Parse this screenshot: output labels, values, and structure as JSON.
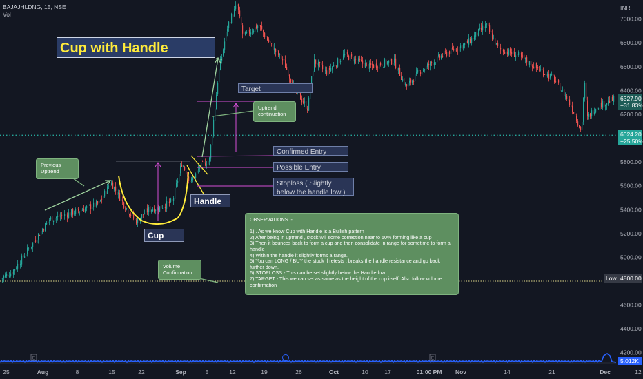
{
  "header": {
    "symbol": "BAJAJHLDNG, 15, NSE",
    "vol": "Vol"
  },
  "currency": "INR",
  "title": "Cup with Handle",
  "labels": {
    "target": "Target",
    "confirmed_entry": "Confirmed Entry",
    "possible_entry": "Possible Entry",
    "stoploss": "Stoploss ( Slightly below the handle low )",
    "handle": "Handle",
    "cup": "Cup",
    "previous_uptrend": "Previous Uptrend",
    "uptrend_continuation": "Uptrend continuation",
    "volume_confirmation": "Volume Confirmation",
    "low": "Low"
  },
  "observations": {
    "heading": "OBSERVATIONS :-",
    "items": [
      "1) . As we know Cup with Handle is a Bullish pattern",
      "2) After being in uptrend , stock will some correction near to 50% forming like a cup",
      "3)  Then it bounces back to form a cup and then consolidate in range for sometime to form a handle",
      "4) Within the handle it slightly forms a range.",
      "5) You can LONG / BUY the stock if retests , breaks the handle resistance and go back further down.",
      "6) STOPLOSS - This can be set slightly below the Handle low",
      "7) TARGET - This we can set as same as the height of the cup itself. Also follow volume confirmation"
    ]
  },
  "price_tags": {
    "current_price": "6327.90",
    "current_change": "+31.83%",
    "line_price": "6024.20",
    "line_change": "+25.50%",
    "low_price": "4800.00",
    "volume": "5.012K"
  },
  "colors": {
    "up": "#26a69a",
    "down": "#ef5350",
    "background": "#131722",
    "annotation_green": "#5e8f60",
    "title_yellow": "#ffeb3b"
  },
  "chart_data": {
    "type": "candlestick",
    "y_axis_ticks": [
      7000,
      6800,
      6600,
      6400,
      6200,
      5800,
      5600,
      5400,
      5200,
      5000,
      4600,
      4400,
      4200
    ],
    "ylim": [
      4100,
      7160
    ],
    "x_axis_ticks": [
      "25",
      "Aug",
      "8",
      "15",
      "22",
      "Sep",
      "5",
      "12",
      "19",
      "26",
      "Oct",
      "10",
      "17",
      "01:00 PM",
      "Nov",
      "14",
      "21",
      "Dec",
      "12"
    ],
    "price_path": [
      [
        0,
        4820
      ],
      [
        0.02,
        4880
      ],
      [
        0.05,
        5100
      ],
      [
        0.08,
        5320
      ],
      [
        0.12,
        5380
      ],
      [
        0.16,
        5450
      ],
      [
        0.18,
        5630
      ],
      [
        0.2,
        5450
      ],
      [
        0.22,
        5300
      ],
      [
        0.24,
        5400
      ],
      [
        0.26,
        5420
      ],
      [
        0.28,
        5470
      ],
      [
        0.295,
        5790
      ],
      [
        0.31,
        5630
      ],
      [
        0.325,
        5760
      ],
      [
        0.34,
        5820
      ],
      [
        0.355,
        6550
      ],
      [
        0.37,
        6950
      ],
      [
        0.385,
        7120
      ],
      [
        0.395,
        6850
      ],
      [
        0.42,
        6950
      ],
      [
        0.44,
        6780
      ],
      [
        0.46,
        6650
      ],
      [
        0.48,
        6400
      ],
      [
        0.5,
        6250
      ],
      [
        0.51,
        6650
      ],
      [
        0.53,
        6550
      ],
      [
        0.56,
        6700
      ],
      [
        0.6,
        6600
      ],
      [
        0.64,
        6650
      ],
      [
        0.66,
        6430
      ],
      [
        0.68,
        6550
      ],
      [
        0.72,
        6700
      ],
      [
        0.76,
        6800
      ],
      [
        0.79,
        6950
      ],
      [
        0.81,
        6750
      ],
      [
        0.84,
        6700
      ],
      [
        0.87,
        6600
      ],
      [
        0.9,
        6500
      ],
      [
        0.92,
        6350
      ],
      [
        0.935,
        6200
      ],
      [
        0.945,
        6050
      ],
      [
        0.95,
        6480
      ],
      [
        0.955,
        6170
      ],
      [
        0.97,
        6270
      ],
      [
        1.0,
        6330
      ]
    ],
    "levels": {
      "horizontal_dotted": 6024.2,
      "low": 4800
    }
  }
}
